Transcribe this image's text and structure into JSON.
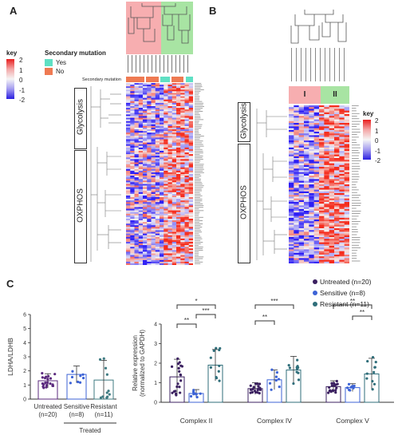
{
  "panels": {
    "a": "A",
    "b": "B",
    "c": "C"
  },
  "panel_a": {
    "key_title": "key",
    "key_ticks": [
      "2",
      "1",
      "0",
      "-1",
      "-2"
    ],
    "legend_title": "Secondary mutation",
    "legend_items": [
      {
        "label": "Yes",
        "color": "#5fe0c4"
      },
      {
        "label": "No",
        "color": "#ef7a52"
      }
    ],
    "annotation_row_label": "Secondary mutation",
    "row_groups": [
      "Glycolysis",
      "OXPHOS"
    ],
    "cluster_colors": {
      "left": "#f7aeb0",
      "right": "#a8e4a3"
    }
  },
  "panel_b": {
    "key_title": "key",
    "key_ticks": [
      "2",
      "1",
      "0",
      "-1",
      "-2"
    ],
    "clusters": [
      "I",
      "II"
    ],
    "row_groups": [
      "Glycolysis",
      "OXPHOS"
    ],
    "cluster_colors": {
      "left": "#f7aeb0",
      "right": "#a8e4a3"
    }
  },
  "chart_data": [
    {
      "type": "bar",
      "ylabel": "LDHA/LDHB",
      "ylim": [
        0,
        6
      ],
      "categories": [
        "Untreated\n(n=20)",
        "Sensitive\n(n=8)",
        "Resistant\n(n=11)"
      ],
      "group_label": "Treated",
      "values": [
        1.3,
        1.75,
        1.35
      ],
      "sd": [
        0.5,
        0.6,
        1.4
      ],
      "yticks": [
        "0",
        "1",
        "2",
        "3",
        "4",
        "5",
        "6"
      ],
      "colors": [
        "#5b2a7e",
        "#3c63d6",
        "#3f7b82"
      ]
    },
    {
      "type": "bar",
      "ylabel": "Relative expression\n(normalized to GAPDH)",
      "ylim": [
        0,
        4
      ],
      "yticks": [
        "0",
        "1",
        "2",
        "3",
        "4"
      ],
      "categories": [
        "Complex II",
        "Complex IV",
        "Complex V"
      ],
      "series": [
        {
          "name": "Untreated (n=20)",
          "values": [
            1.3,
            0.7,
            0.8
          ],
          "sd": [
            0.9,
            0.3,
            0.3
          ],
          "color": "#3b2060"
        },
        {
          "name": "Sensitive (n=8)",
          "values": [
            0.45,
            1.15,
            0.75
          ],
          "sd": [
            0.2,
            0.5,
            0.2
          ],
          "color": "#3c63d6"
        },
        {
          "name": "Resistant (n=11)",
          "values": [
            1.9,
            1.65,
            1.45
          ],
          "sd": [
            0.8,
            0.7,
            0.8
          ],
          "color": "#2f6e7a"
        }
      ],
      "significance": [
        {
          "group": 0,
          "from": 0,
          "to": 2,
          "label": "*"
        },
        {
          "group": 0,
          "from": 0,
          "to": 1,
          "label": "**"
        },
        {
          "group": 0,
          "from": 1,
          "to": 2,
          "label": "***"
        },
        {
          "group": 1,
          "from": 0,
          "to": 2,
          "label": "***"
        },
        {
          "group": 1,
          "from": 0,
          "to": 1,
          "label": "**"
        },
        {
          "group": 2,
          "from": 0,
          "to": 2,
          "label": "**"
        },
        {
          "group": 2,
          "from": 1,
          "to": 2,
          "label": "**"
        }
      ]
    }
  ]
}
